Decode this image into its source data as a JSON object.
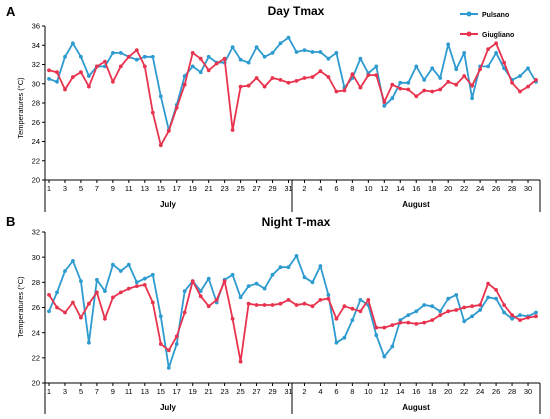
{
  "chart_data": [
    {
      "type": "line",
      "panel_label": "A",
      "title": "Day Tmax",
      "xlabel": "",
      "ylabel": "Temperatures (°C)",
      "ylim": [
        20,
        36
      ],
      "yticks": [
        20,
        22,
        24,
        26,
        28,
        30,
        32,
        34,
        36
      ],
      "x_tick_labels": [
        "1",
        "3",
        "5",
        "7",
        "9",
        "11",
        "13",
        "15",
        "17",
        "19",
        "21",
        "23",
        "25",
        "27",
        "29",
        "31",
        "2",
        "4",
        "6",
        "8",
        "10",
        "12",
        "14",
        "16",
        "18",
        "20",
        "22",
        "24",
        "26",
        "28",
        "30"
      ],
      "month_groups": [
        "July",
        "August"
      ],
      "legend_position": "top-right",
      "series": [
        {
          "name": "Pulsano",
          "color": "#2e9bd0",
          "values": [
            30.5,
            30.2,
            32.8,
            34.2,
            32.8,
            30.8,
            31.8,
            31.8,
            33.2,
            33.2,
            32.8,
            32.5,
            32.8,
            32.8,
            28.7,
            25.2,
            27.8,
            30.8,
            31.8,
            31.2,
            32.8,
            32.2,
            32.2,
            33.8,
            32.5,
            32.2,
            33.8,
            32.8,
            33.2,
            34.2,
            34.8,
            33.3,
            33.5,
            33.3,
            33.3,
            32.6,
            33.2,
            29.6,
            30.6,
            32.6,
            31.1,
            31.8,
            27.7,
            28.5,
            30.1,
            30.1,
            31.8,
            30.4,
            31.6,
            30.6,
            34.1,
            31.5,
            33.2,
            28.5,
            31.8,
            31.8,
            33.2,
            31.6,
            30.4,
            30.8,
            31.6,
            30.2
          ]
        },
        {
          "name": "Giugliano",
          "color": "#e8334e",
          "values": [
            31.4,
            31.2,
            29.4,
            30.7,
            31.2,
            29.7,
            31.8,
            32.3,
            30.2,
            31.8,
            32.8,
            33.5,
            31.8,
            27.0,
            23.6,
            25.1,
            27.5,
            29.9,
            33.2,
            32.6,
            31.4,
            32.1,
            32.6,
            25.2,
            29.7,
            29.8,
            30.6,
            29.7,
            30.6,
            30.4,
            30.1,
            30.3,
            30.6,
            30.7,
            31.3,
            30.7,
            29.2,
            29.3,
            31.0,
            29.6,
            30.9,
            30.9,
            28.1,
            29.9,
            29.5,
            29.4,
            28.7,
            29.3,
            29.2,
            29.4,
            30.2,
            29.9,
            30.8,
            29.8,
            31.5,
            33.6,
            34.2,
            32.2,
            30.1,
            29.2,
            29.7,
            30.4
          ]
        }
      ]
    },
    {
      "type": "line",
      "panel_label": "B",
      "title": "Night T-max",
      "xlabel": "",
      "ylabel": "Temperatures (°C)",
      "ylim": [
        20,
        32
      ],
      "yticks": [
        20,
        22,
        24,
        26,
        28,
        30,
        32
      ],
      "x_tick_labels": [
        "1",
        "3",
        "5",
        "7",
        "9",
        "11",
        "13",
        "15",
        "17",
        "19",
        "21",
        "23",
        "25",
        "27",
        "29",
        "31",
        "2",
        "4",
        "6",
        "8",
        "10",
        "12",
        "14",
        "16",
        "18",
        "20",
        "22",
        "24",
        "26",
        "28",
        "30"
      ],
      "month_groups": [
        "July",
        "August"
      ],
      "series": [
        {
          "name": "Pulsano",
          "color": "#2e9bd0",
          "values": [
            25.7,
            27.2,
            28.9,
            29.7,
            28.1,
            23.2,
            28.2,
            27.3,
            29.4,
            28.9,
            29.4,
            28.0,
            28.3,
            28.6,
            25.3,
            21.2,
            23.1,
            27.3,
            28.1,
            27.3,
            28.3,
            26.4,
            28.2,
            28.6,
            26.8,
            27.7,
            27.9,
            27.5,
            28.6,
            29.2,
            29.2,
            30.1,
            28.4,
            28.0,
            29.3,
            27.0,
            23.2,
            23.6,
            25.0,
            26.6,
            26.2,
            23.8,
            22.1,
            22.9,
            25.0,
            25.4,
            25.7,
            26.2,
            26.1,
            25.7,
            26.7,
            27.0,
            24.9,
            25.3,
            25.8,
            26.8,
            26.7,
            25.6,
            25.1,
            25.4,
            25.3,
            25.6
          ]
        },
        {
          "name": "Giugliano",
          "color": "#e8334e",
          "values": [
            27.0,
            26.0,
            25.6,
            26.4,
            25.2,
            26.3,
            27.2,
            25.1,
            26.8,
            27.2,
            27.5,
            27.7,
            27.8,
            26.4,
            23.1,
            22.6,
            23.7,
            25.6,
            28.1,
            26.9,
            26.1,
            26.6,
            28.1,
            25.1,
            21.7,
            26.3,
            26.2,
            26.2,
            26.2,
            26.3,
            26.6,
            26.2,
            26.3,
            26.1,
            26.6,
            26.7,
            25.1,
            26.1,
            25.9,
            25.7,
            26.6,
            24.4,
            24.4,
            24.6,
            24.8,
            24.8,
            24.7,
            24.8,
            25.0,
            25.4,
            25.7,
            25.8,
            26.0,
            26.1,
            26.2,
            27.9,
            27.4,
            26.2,
            25.4,
            25.0,
            25.2,
            25.3
          ]
        }
      ]
    }
  ]
}
